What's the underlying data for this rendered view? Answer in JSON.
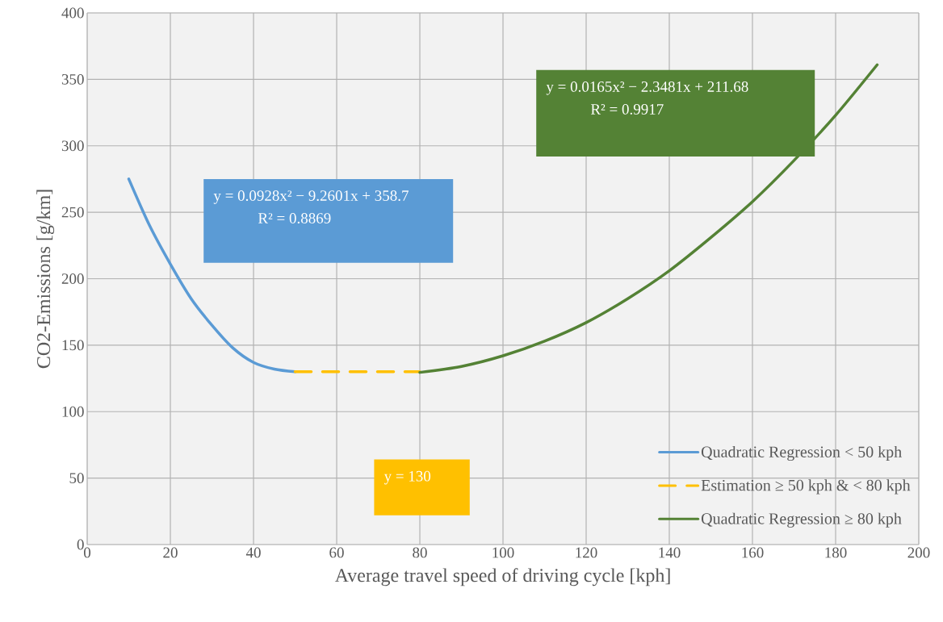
{
  "chart_data": {
    "type": "line",
    "xlabel": "Average travel speed of driving cycle [kph]",
    "ylabel": "CO2-Emissions [g/km]",
    "xlim": [
      0,
      200
    ],
    "ylim": [
      0,
      400
    ],
    "xticks": [
      0,
      20,
      40,
      60,
      80,
      100,
      120,
      140,
      160,
      180,
      200
    ],
    "yticks": [
      0,
      50,
      100,
      150,
      200,
      250,
      300,
      350,
      400
    ],
    "grid": true,
    "legend": "bottom right",
    "series": [
      {
        "name": "Quadratic Regression < 50 kph",
        "color": "#5b9bd5",
        "line_style": "solid",
        "x": [
          10,
          15,
          20,
          25,
          30,
          35,
          40,
          45,
          50
        ],
        "values": [
          275,
          240,
          211,
          185,
          165,
          148,
          137,
          132,
          130
        ]
      },
      {
        "name": "Estimation ≥ 50 kph & < 80 kph",
        "color": "#ffc000",
        "line_style": "dashed",
        "x": [
          50,
          80
        ],
        "values": [
          130,
          130
        ]
      },
      {
        "name": "Quadratic Regression ≥ 80 kph",
        "color": "#548235",
        "line_style": "solid",
        "x": [
          80,
          90,
          100,
          110,
          120,
          130,
          140,
          150,
          160,
          170,
          180,
          190
        ],
        "values": [
          129.5,
          134,
          142,
          153,
          167,
          185,
          206,
          231,
          258,
          289,
          323,
          361
        ]
      }
    ],
    "annotations": [
      "y = 0.0928x² − 9.2601x + 358.7",
      "R² = 0.8869",
      "y = 0.0165x² − 2.3481x + 211.68",
      "R² = 0.9917",
      "y = 130"
    ]
  }
}
